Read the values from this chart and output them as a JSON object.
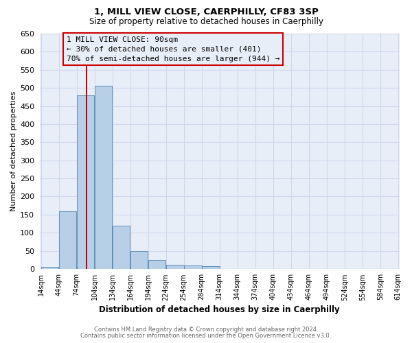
{
  "title": "1, MILL VIEW CLOSE, CAERPHILLY, CF83 3SP",
  "subtitle": "Size of property relative to detached houses in Caerphilly",
  "xlabel": "Distribution of detached houses by size in Caerphilly",
  "ylabel": "Number of detached properties",
  "bin_edges": [
    14,
    44,
    74,
    104,
    134,
    164,
    194,
    224,
    254,
    284,
    314,
    344,
    374,
    404,
    434,
    464,
    494,
    524,
    554,
    584,
    614
  ],
  "bar_heights": [
    5,
    160,
    480,
    505,
    120,
    50,
    25,
    12,
    10,
    8,
    0,
    0,
    0,
    0,
    0,
    0,
    0,
    0,
    0,
    0
  ],
  "bar_color": "#b8cfe8",
  "bar_edge_color": "#6090b8",
  "bar_linewidth": 0.7,
  "red_line_x": 90,
  "red_line_color": "#cc0000",
  "ylim": [
    0,
    650
  ],
  "yticks": [
    0,
    50,
    100,
    150,
    200,
    250,
    300,
    350,
    400,
    450,
    500,
    550,
    600,
    650
  ],
  "annotation_title": "1 MILL VIEW CLOSE: 90sqm",
  "annotation_line1": "← 30% of detached houses are smaller (401)",
  "annotation_line2": "70% of semi-detached houses are larger (944) →",
  "annotation_box_edgecolor": "#cc0000",
  "footer_line1": "Contains HM Land Registry data © Crown copyright and database right 2024.",
  "footer_line2": "Contains public sector information licensed under the Open Government Licence v3.0.",
  "grid_color": "#d0d8ea",
  "plot_bg_color": "#e8eef8",
  "fig_bg_color": "#ffffff"
}
